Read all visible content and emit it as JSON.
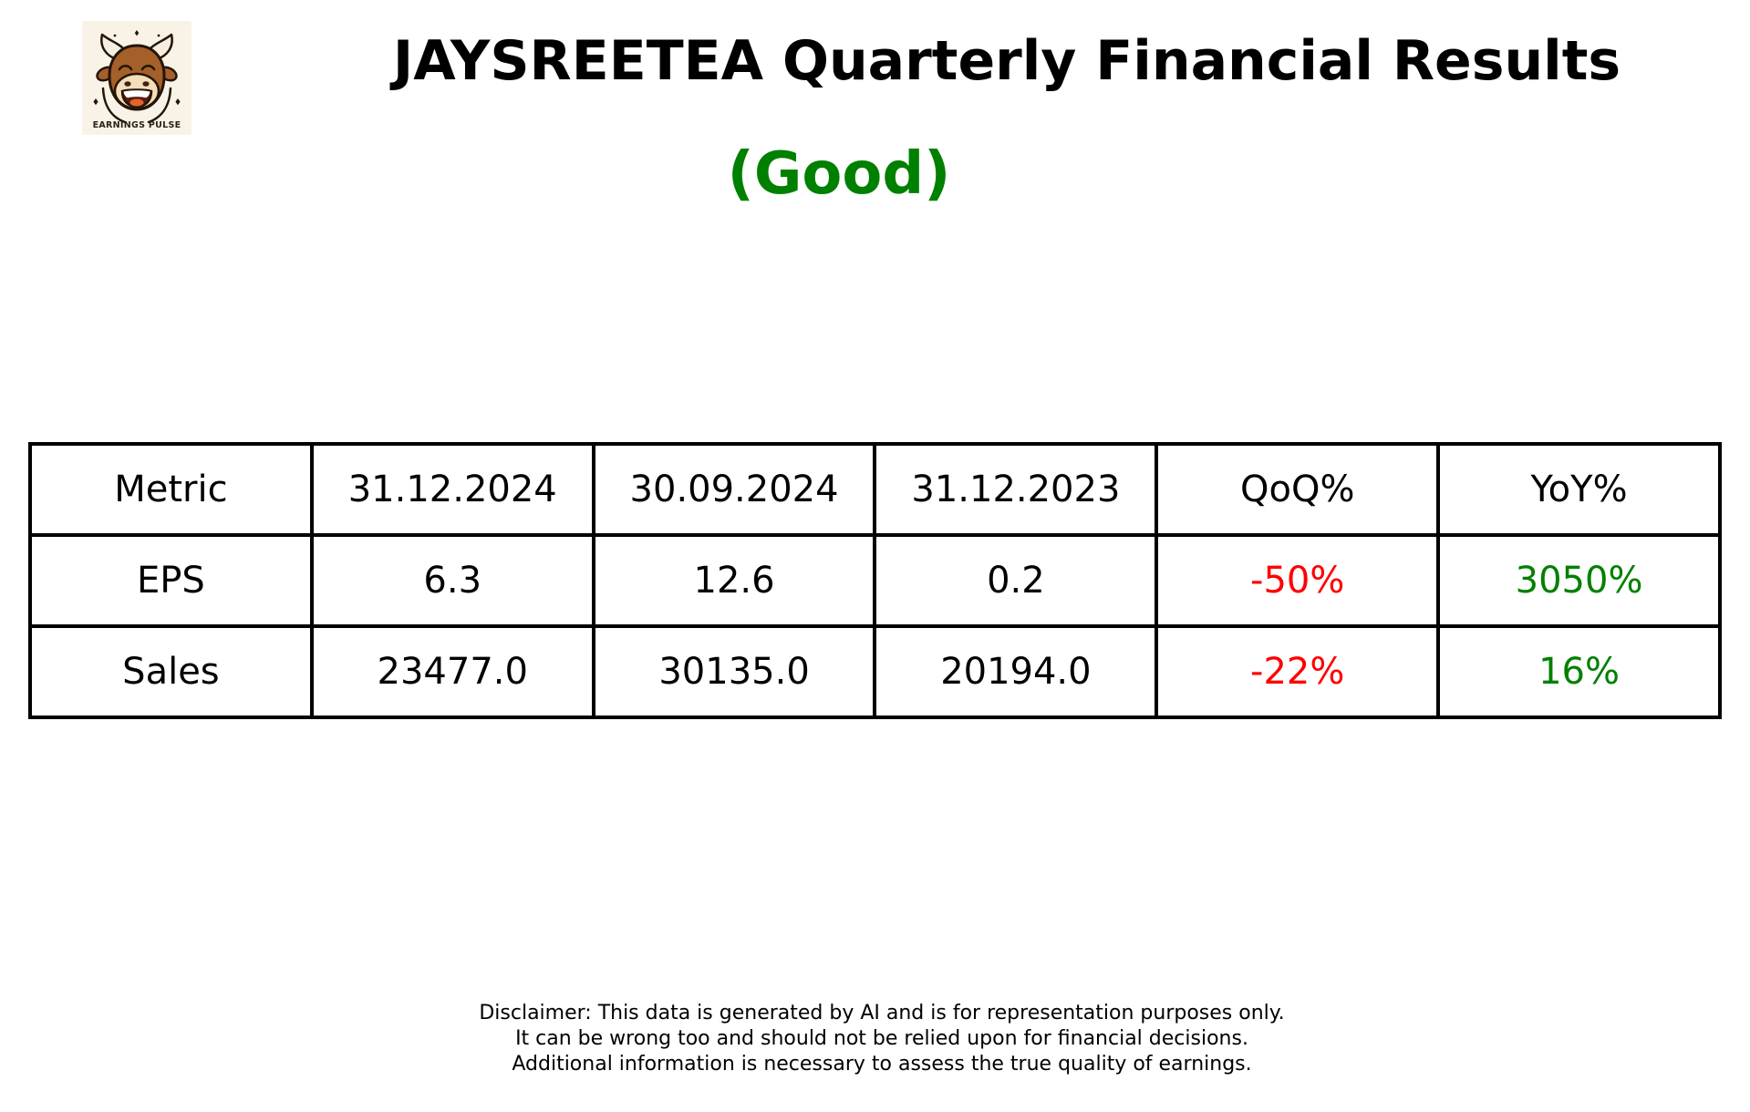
{
  "logo": {
    "caption": "EARNINGS PULSE"
  },
  "header": {
    "title": "JAYSREETEA Quarterly Financial Results",
    "verdict": "(Good)"
  },
  "colors": {
    "positive": "#008000",
    "negative": "#ff0000",
    "text": "#000000",
    "border": "#000000",
    "logo_background": "#f9f3e7",
    "page_background": "#ffffff"
  },
  "chart_data": {
    "type": "table",
    "title": "JAYSREETEA Quarterly Financial Results",
    "verdict": "(Good)",
    "columns": [
      "Metric",
      "31.12.2024",
      "30.09.2024",
      "31.12.2023",
      "QoQ%",
      "YoY%"
    ],
    "rows": [
      [
        {
          "text": "EPS"
        },
        {
          "text": "6.3"
        },
        {
          "text": "12.6"
        },
        {
          "text": "0.2"
        },
        {
          "text": "-50%",
          "color": "negative"
        },
        {
          "text": "3050%",
          "color": "positive"
        }
      ],
      [
        {
          "text": "Sales"
        },
        {
          "text": "23477.0"
        },
        {
          "text": "30135.0"
        },
        {
          "text": "20194.0"
        },
        {
          "text": "-22%",
          "color": "negative"
        },
        {
          "text": "16%",
          "color": "positive"
        }
      ]
    ],
    "metrics": [
      "EPS",
      "Sales"
    ],
    "series": [
      {
        "name": "31.12.2024",
        "values": [
          6.3,
          23477.0
        ]
      },
      {
        "name": "30.09.2024",
        "values": [
          12.6,
          30135.0
        ]
      },
      {
        "name": "31.12.2023",
        "values": [
          0.2,
          20194.0
        ]
      },
      {
        "name": "QoQ%",
        "values": [
          -50,
          -22
        ]
      },
      {
        "name": "YoY%",
        "values": [
          3050,
          16
        ]
      }
    ]
  },
  "disclaimer": {
    "lines": [
      "Disclaimer: This data is generated by AI and is for representation purposes only.",
      "It can be wrong too and should not be relied upon for financial decisions.",
      "Additional information is necessary to assess the true quality of earnings."
    ]
  }
}
